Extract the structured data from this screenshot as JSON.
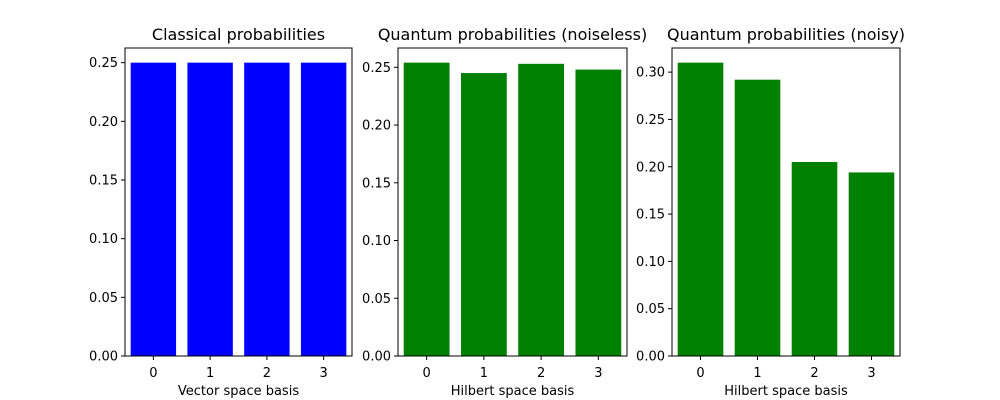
{
  "chart_data": [
    {
      "type": "bar",
      "title": "Classical probabilities",
      "xlabel": "Vector space basis",
      "ylabel": "",
      "categories": [
        "0",
        "1",
        "2",
        "3"
      ],
      "values": [
        0.25,
        0.25,
        0.25,
        0.25
      ],
      "ylim": [
        0,
        0.2625
      ],
      "yticks": [
        "0.00",
        "0.05",
        "0.10",
        "0.15",
        "0.20",
        "0.25"
      ],
      "color": "#0000ff",
      "grid": false
    },
    {
      "type": "bar",
      "title": "Quantum probabilities (noiseless)",
      "xlabel": "Hilbert space basis",
      "ylabel": "",
      "categories": [
        "0",
        "1",
        "2",
        "3"
      ],
      "values": [
        0.254,
        0.245,
        0.253,
        0.248
      ],
      "ylim": [
        0,
        0.2667
      ],
      "yticks": [
        "0.00",
        "0.05",
        "0.10",
        "0.15",
        "0.20",
        "0.25"
      ],
      "color": "#008000",
      "grid": false
    },
    {
      "type": "bar",
      "title": "Quantum probabilities (noisy)",
      "xlabel": "Hilbert space basis",
      "ylabel": "",
      "categories": [
        "0",
        "1",
        "2",
        "3"
      ],
      "values": [
        0.31,
        0.292,
        0.205,
        0.194
      ],
      "ylim": [
        0,
        0.3255
      ],
      "yticks": [
        "0.00",
        "0.05",
        "0.10",
        "0.15",
        "0.20",
        "0.25",
        "0.30"
      ],
      "color": "#008000",
      "grid": false
    }
  ]
}
